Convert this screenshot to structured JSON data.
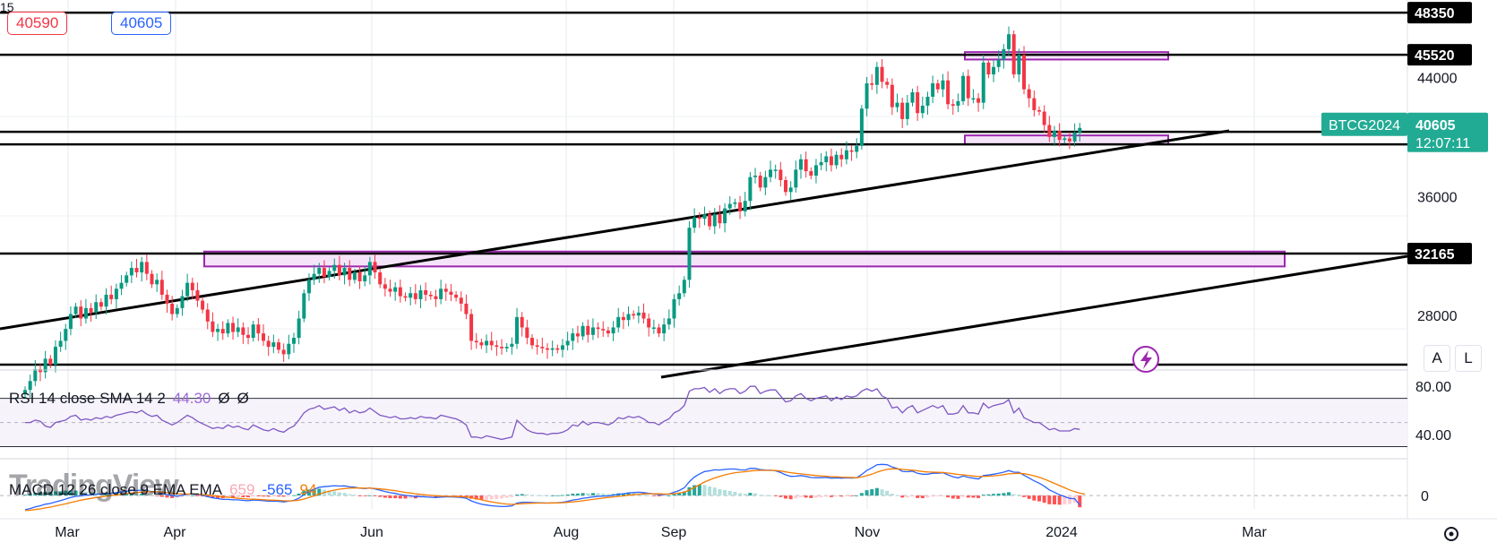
{
  "header": {
    "bid": "40590",
    "spread": "15",
    "ask": "40605"
  },
  "watermark": "TradingView",
  "rsi_label": {
    "name": "RSI 14 close SMA 14 2",
    "value": "44.30",
    "extra1": "Ø",
    "extra2": "Ø"
  },
  "macd_label": {
    "name": "MACD 12 26 close 9 EMA EMA",
    "hist": "659",
    "macd": "-565",
    "signal": "94"
  },
  "buttons": {
    "auto": "A",
    "log": "L"
  },
  "colors": {
    "up": "#089981",
    "down": "#f23645",
    "zone_fill": "#f3dff8",
    "zone_border": "#9c27b0",
    "rsi": "#7e57c2",
    "macd_line": "#2962ff",
    "signal_line": "#f57c00",
    "price_tag": "#22ab94",
    "axis_text": "#131722"
  },
  "chart_data": [
    {
      "type": "candlestick",
      "symbol_tag": "BTCG2024",
      "current_price": "40605",
      "countdown": "12:07:11",
      "x_tick_labels": [
        "Mar",
        "Apr",
        "Jun",
        "Aug",
        "Sep",
        "Nov",
        "2024",
        "Mar"
      ],
      "y_tick_labels": [
        "44000",
        "36000",
        "28000"
      ],
      "ylim": [
        24400,
        49200
      ],
      "horizontal_levels": [
        {
          "label": "48350",
          "value": 48350
        },
        {
          "label": "45520",
          "value": 45520
        },
        {
          "label": "40345",
          "value": 40345
        },
        {
          "label": "32165",
          "value": 32165
        },
        {
          "value": 39500,
          "unlabeled": true
        },
        {
          "value": 24700,
          "unlabeled": true
        }
      ],
      "zones": [
        {
          "from": 31300,
          "to": 32300
        },
        {
          "from": 45200,
          "to": 45700
        },
        {
          "from": 39500,
          "to": 40100
        }
      ],
      "closes": [
        23000,
        23600,
        24400,
        24200,
        25100,
        24700,
        25900,
        26300,
        27100,
        28100,
        28600,
        27800,
        28500,
        28200,
        28900,
        28600,
        29400,
        29100,
        29800,
        30200,
        30700,
        31200,
        30900,
        31600,
        30800,
        30100,
        30400,
        29400,
        28800,
        28100,
        28500,
        29300,
        30200,
        29700,
        29000,
        28400,
        27600,
        26900,
        27100,
        26800,
        27500,
        26900,
        27200,
        26700,
        26500,
        27400,
        26800,
        26300,
        25900,
        26200,
        25700,
        25400,
        26100,
        26500,
        27800,
        29500,
        30400,
        30800,
        31200,
        30600,
        31000,
        31400,
        30700,
        31200,
        30400,
        30900,
        30300,
        30700,
        31600,
        30900,
        30100,
        29800,
        29600,
        29900,
        29300,
        29200,
        29500,
        29100,
        29700,
        29400,
        29300,
        29100,
        29800,
        29600,
        29400,
        29200,
        28800,
        28100,
        26300,
        26200,
        26000,
        26300,
        26000,
        25900,
        25800,
        25900,
        26100,
        27900,
        27200,
        26500,
        26000,
        25900,
        25800,
        25700,
        25800,
        25700,
        26000,
        26300,
        26800,
        26600,
        27300,
        26700,
        27200,
        27100,
        27000,
        26800,
        27200,
        27900,
        27700,
        28100,
        28000,
        28200,
        27800,
        27200,
        27200,
        26800,
        27400,
        27800,
        29100,
        29500,
        30400,
        33900,
        34600,
        34500,
        34800,
        34000,
        34800,
        34200,
        35200,
        35500,
        35600,
        35000,
        35700,
        37300,
        37400,
        36600,
        37300,
        37800,
        37800,
        37100,
        36300,
        36600,
        37800,
        38500,
        37700,
        37400,
        38100,
        38300,
        38700,
        38100,
        38800,
        38500,
        39100,
        39000,
        39400,
        41900,
        43600,
        43500,
        44700,
        43700,
        43500,
        42000,
        42300,
        41200,
        42300,
        43000,
        41600,
        42100,
        42700,
        43600,
        43200,
        43800,
        42200,
        42100,
        42400,
        44100,
        42600,
        42600,
        42300,
        45000,
        44200,
        44700,
        45200,
        45900,
        46900,
        44200,
        45500,
        43200,
        42600,
        41800,
        41700,
        40800,
        40000,
        40400,
        39800,
        39900,
        39700,
        40300,
        40605
      ]
    },
    {
      "type": "line",
      "name": "RSI",
      "ylim": [
        20,
        92
      ],
      "y_tick_labels": [
        "80.00",
        "40.00"
      ],
      "bands": [
        70,
        30
      ],
      "midline": 50,
      "rsi": [
        50,
        50,
        52,
        51,
        47,
        46,
        50,
        51,
        52,
        55,
        56,
        52,
        53,
        52,
        54,
        53,
        55,
        54,
        56,
        57,
        58,
        59,
        58,
        60,
        57,
        55,
        56,
        52,
        50,
        48,
        50,
        53,
        56,
        54,
        51,
        49,
        47,
        45,
        46,
        45,
        48,
        46,
        47,
        45,
        44,
        48,
        46,
        44,
        43,
        45,
        43,
        42,
        45,
        47,
        52,
        58,
        61,
        62,
        64,
        61,
        62,
        63,
        60,
        62,
        58,
        60,
        58,
        59,
        62,
        59,
        56,
        55,
        54,
        55,
        53,
        53,
        54,
        53,
        55,
        54,
        54,
        53,
        56,
        55,
        54,
        53,
        51,
        48,
        38,
        38,
        37,
        39,
        38,
        37,
        36,
        37,
        38,
        52,
        48,
        44,
        42,
        41,
        41,
        40,
        41,
        41,
        42,
        44,
        48,
        47,
        51,
        48,
        50,
        50,
        49,
        48,
        50,
        54,
        53,
        55,
        54,
        55,
        53,
        50,
        50,
        48,
        51,
        53,
        58,
        60,
        64,
        76,
        78,
        78,
        79,
        75,
        78,
        74,
        77,
        78,
        78,
        74,
        76,
        80,
        80,
        74,
        76,
        77,
        77,
        72,
        67,
        68,
        72,
        74,
        70,
        68,
        70,
        71,
        72,
        68,
        71,
        69,
        72,
        71,
        72,
        76,
        78,
        76,
        78,
        72,
        70,
        62,
        63,
        58,
        62,
        64,
        58,
        60,
        62,
        64,
        62,
        64,
        57,
        57,
        58,
        64,
        58,
        58,
        57,
        66,
        62,
        64,
        65,
        66,
        69,
        58,
        62,
        54,
        52,
        50,
        50,
        47,
        44,
        45,
        43,
        43,
        43,
        45,
        44.3
      ]
    },
    {
      "type": "line",
      "name": "MACD",
      "y_tick_labels": [
        "0"
      ],
      "ylim": [
        -800,
        2100
      ],
      "zero_line": 0,
      "macd": [
        -850,
        -780,
        -680,
        -610,
        -520,
        -470,
        -380,
        -300,
        -210,
        -120,
        -50,
        -20,
        20,
        40,
        80,
        90,
        130,
        140,
        180,
        220,
        260,
        300,
        300,
        330,
        290,
        230,
        200,
        130,
        60,
        -10,
        -30,
        10,
        80,
        90,
        60,
        10,
        -60,
        -140,
        -180,
        -230,
        -230,
        -260,
        -260,
        -290,
        -310,
        -270,
        -280,
        -310,
        -340,
        -330,
        -350,
        -380,
        -340,
        -290,
        -160,
        60,
        240,
        380,
        500,
        530,
        560,
        590,
        570,
        580,
        520,
        500,
        440,
        420,
        450,
        400,
        320,
        240,
        170,
        130,
        60,
        10,
        -20,
        -60,
        -60,
        -80,
        -100,
        -120,
        -90,
        -80,
        -80,
        -90,
        -110,
        -160,
        -320,
        -430,
        -520,
        -570,
        -610,
        -640,
        -660,
        -650,
        -620,
        -450,
        -400,
        -400,
        -420,
        -430,
        -440,
        -450,
        -440,
        -430,
        -400,
        -350,
        -270,
        -230,
        -160,
        -130,
        -80,
        -50,
        -30,
        -20,
        10,
        80,
        110,
        160,
        180,
        200,
        180,
        130,
        100,
        50,
        60,
        90,
        200,
        300,
        460,
        830,
        1110,
        1290,
        1440,
        1480,
        1540,
        1530,
        1570,
        1590,
        1590,
        1540,
        1530,
        1630,
        1630,
        1550,
        1530,
        1520,
        1480,
        1380,
        1240,
        1150,
        1160,
        1200,
        1150,
        1080,
        1070,
        1070,
        1090,
        1040,
        1060,
        1040,
        1060,
        1050,
        1070,
        1260,
        1510,
        1660,
        1850,
        1870,
        1850,
        1710,
        1620,
        1450,
        1430,
        1460,
        1330,
        1280,
        1280,
        1340,
        1340,
        1370,
        1240,
        1130,
        1060,
        1170,
        1090,
        1040,
        990,
        1200,
        1230,
        1280,
        1330,
        1400,
        1500,
        1400,
        1390,
        1220,
        1050,
        880,
        740,
        560,
        340,
        200,
        50,
        -60,
        -170,
        -190,
        -565
      ],
      "signal": [
        -900,
        -880,
        -840,
        -800,
        -740,
        -690,
        -630,
        -560,
        -500,
        -420,
        -350,
        -280,
        -220,
        -170,
        -120,
        -80,
        -40,
        0,
        30,
        70,
        110,
        150,
        180,
        210,
        230,
        230,
        230,
        210,
        180,
        140,
        110,
        90,
        90,
        90,
        80,
        60,
        40,
        0,
        -30,
        -70,
        -100,
        -130,
        -160,
        -190,
        -210,
        -220,
        -230,
        -250,
        -270,
        -280,
        -290,
        -310,
        -320,
        -310,
        -280,
        -210,
        -120,
        -20,
        90,
        180,
        260,
        330,
        380,
        420,
        440,
        450,
        450,
        440,
        440,
        430,
        400,
        370,
        330,
        290,
        240,
        190,
        150,
        110,
        70,
        40,
        10,
        -10,
        -30,
        -40,
        -50,
        -60,
        -70,
        -90,
        -130,
        -190,
        -260,
        -320,
        -380,
        -430,
        -480,
        -510,
        -530,
        -510,
        -490,
        -470,
        -460,
        -450,
        -450,
        -450,
        -440,
        -440,
        -430,
        -410,
        -380,
        -350,
        -310,
        -270,
        -230,
        -190,
        -150,
        -110,
        -80,
        -50,
        -20,
        20,
        50,
        80,
        100,
        110,
        110,
        100,
        90,
        90,
        110,
        150,
        210,
        330,
        490,
        650,
        810,
        940,
        1060,
        1150,
        1240,
        1310,
        1370,
        1400,
        1430,
        1470,
        1500,
        1510,
        1510,
        1510,
        1500,
        1470,
        1420,
        1370,
        1330,
        1300,
        1270,
        1230,
        1200,
        1170,
        1160,
        1130,
        1120,
        1100,
        1090,
        1080,
        1070,
        1110,
        1190,
        1280,
        1400,
        1500,
        1570,
        1600,
        1600,
        1570,
        1540,
        1520,
        1480,
        1440,
        1410,
        1400,
        1390,
        1380,
        1350,
        1310,
        1260,
        1240,
        1210,
        1170,
        1140,
        1150,
        1160,
        1180,
        1210,
        1250,
        1300,
        1320,
        1330,
        1310,
        1250,
        1180,
        1090,
        990,
        860,
        730,
        600,
        470,
        340,
        230,
        140,
        94
      ]
    }
  ]
}
